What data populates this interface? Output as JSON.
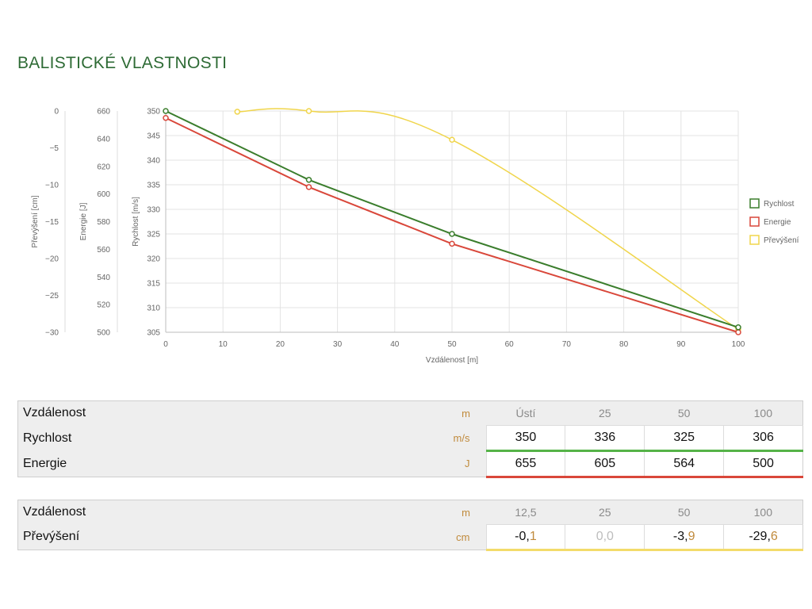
{
  "page": {
    "title": "BALISTICKÉ VLASTNOSTI"
  },
  "colors": {
    "title": "#2e6b35",
    "velocity": "#3a7d2c",
    "energy": "#d9473a",
    "drop": "#f0d54b",
    "unit": "#c08a3c"
  },
  "chart_data": {
    "type": "line",
    "xlabel": "Vzdálenost [m]",
    "xlim": [
      0,
      100
    ],
    "xticks": [
      0,
      10,
      20,
      30,
      40,
      50,
      60,
      70,
      80,
      90,
      100
    ],
    "grid": true,
    "legend_position": "right",
    "axes": {
      "velocity": {
        "label": "Rychlost [m/s]",
        "range": [
          305,
          350
        ],
        "ticks": [
          305,
          310,
          315,
          320,
          325,
          330,
          335,
          340,
          345,
          350
        ]
      },
      "energy": {
        "label": "Energie [J]",
        "range": [
          500,
          660
        ],
        "ticks": [
          500,
          520,
          540,
          560,
          580,
          600,
          620,
          640,
          660
        ]
      },
      "drop": {
        "label": "Převýšení [cm]",
        "range": [
          -30,
          0
        ],
        "ticks": [
          0,
          -5,
          -10,
          -15,
          -20,
          -25,
          -30
        ]
      }
    },
    "series": [
      {
        "name": "Rychlost",
        "axis": "velocity",
        "color": "#3a7d2c",
        "x": [
          0,
          25,
          50,
          100
        ],
        "y": [
          350,
          336,
          325,
          306
        ]
      },
      {
        "name": "Energie",
        "axis": "energy",
        "color": "#d9473a",
        "x": [
          0,
          25,
          50,
          100
        ],
        "y": [
          655,
          605,
          564,
          500
        ]
      },
      {
        "name": "Převýšení",
        "axis": "drop",
        "color": "#f0d54b",
        "x": [
          12.5,
          25,
          50,
          100
        ],
        "y": [
          -0.1,
          0.0,
          -3.9,
          -29.6
        ]
      }
    ]
  },
  "table1": {
    "header": {
      "label": "Vzdálenost",
      "unit": "m",
      "cols": [
        "Ústí",
        "25",
        "50",
        "100"
      ]
    },
    "rows": [
      {
        "label": "Rychlost",
        "unit": "m/s",
        "values": [
          "350",
          "336",
          "325",
          "306"
        ]
      },
      {
        "label": "Energie",
        "unit": "J",
        "values": [
          "655",
          "605",
          "564",
          "500"
        ]
      }
    ]
  },
  "table2": {
    "header": {
      "label": "Vzdálenost",
      "unit": "m",
      "cols": [
        "12,5",
        "25",
        "50",
        "100"
      ]
    },
    "rows": [
      {
        "label": "Převýšení",
        "unit": "cm",
        "values_int": [
          "-0,",
          "0,",
          "-3,",
          "-29,"
        ],
        "values_dec": [
          "1",
          "0",
          "9",
          "6"
        ]
      }
    ]
  }
}
